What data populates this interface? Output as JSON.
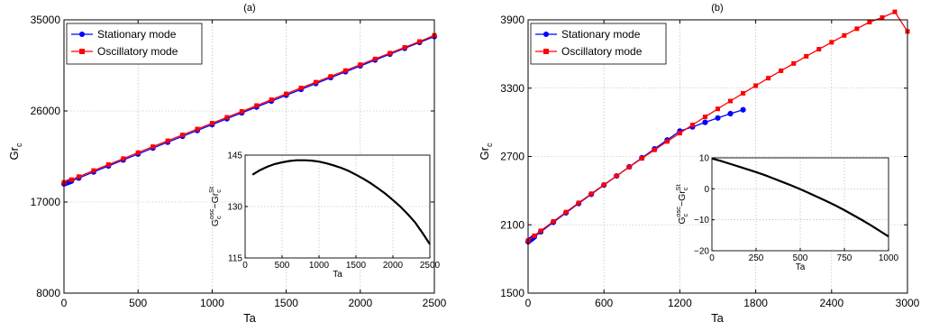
{
  "chart_data": [
    {
      "type": "line",
      "title": "(a)",
      "xlabel": "Ta",
      "ylabel_main": "Gr",
      "ylabel_sub": "c",
      "xlim": [
        0,
        2500
      ],
      "ylim": [
        8000,
        35000
      ],
      "xticks": [
        "0",
        "500",
        "1000",
        "1500",
        "2000",
        "2500"
      ],
      "yticks": [
        "8000",
        "17000",
        "26000",
        "35000"
      ],
      "legend": {
        "placement": "top-left",
        "entries": [
          "Stationary mode",
          "Oscillatory mode"
        ]
      },
      "series": [
        {
          "name": "Stationary mode",
          "color": "#0000ff",
          "marker": "circle",
          "x": [
            0,
            10,
            20,
            30,
            40,
            50,
            100,
            200,
            300,
            400,
            500,
            600,
            700,
            800,
            900,
            1000,
            1100,
            1200,
            1300,
            1400,
            1500,
            1600,
            1700,
            1800,
            1900,
            2000,
            2100,
            2200,
            2300,
            2400,
            2500
          ],
          "y": [
            18800,
            18850,
            18900,
            18960,
            19010,
            19070,
            19370,
            19970,
            20560,
            21150,
            21740,
            22330,
            22910,
            23490,
            24070,
            24650,
            25230,
            25810,
            26390,
            26970,
            27550,
            28130,
            28710,
            29290,
            29870,
            30450,
            31030,
            31610,
            32190,
            32770,
            33350
          ]
        },
        {
          "name": "Oscillatory mode",
          "color": "#ff0000",
          "marker": "square",
          "x": [
            0,
            50,
            100,
            200,
            300,
            400,
            500,
            600,
            700,
            800,
            900,
            1000,
            1100,
            1200,
            1300,
            1400,
            1500,
            1600,
            1700,
            1800,
            1900,
            2000,
            2100,
            2200,
            2300,
            2400,
            2500
          ],
          "y": [
            18939,
            19210,
            19510,
            20110,
            20700,
            21290,
            21880,
            22470,
            23050,
            23630,
            24210,
            24790,
            25370,
            25950,
            26530,
            27110,
            27690,
            28270,
            28840,
            29410,
            29990,
            30570,
            31140,
            31710,
            32280,
            32860,
            33470
          ]
        }
      ],
      "inset": {
        "ylabel": "G",
        "xlabel": "Ta",
        "xlim": [
          0,
          2500
        ],
        "ylim": [
          115,
          145
        ],
        "xticks": [
          "0",
          "500",
          "1000",
          "1500",
          "2000",
          "2500"
        ],
        "yticks": [
          "115",
          "130",
          "145"
        ],
        "x": [
          100,
          200,
          300,
          400,
          500,
          600,
          700,
          800,
          900,
          1000,
          1100,
          1200,
          1300,
          1400,
          1500,
          1600,
          1700,
          1800,
          1900,
          2000,
          2100,
          2200,
          2300,
          2400,
          2500
        ],
        "y": [
          139.3,
          140.6,
          141.6,
          142.4,
          142.9,
          143.3,
          143.5,
          143.5,
          143.4,
          143.1,
          142.6,
          142.0,
          141.3,
          140.4,
          139.3,
          138.1,
          136.8,
          135.3,
          133.7,
          131.9,
          130.0,
          127.8,
          125.4,
          122.3,
          119.0
        ]
      }
    },
    {
      "type": "line",
      "title": "(b)",
      "xlabel": "Ta",
      "ylabel_main": "Gr",
      "ylabel_sub": "c",
      "xlim": [
        0,
        3000
      ],
      "ylim": [
        1500,
        3900
      ],
      "xticks": [
        "0",
        "600",
        "1200",
        "1800",
        "2400",
        "3000"
      ],
      "yticks": [
        "1500",
        "2100",
        "2700",
        "3300",
        "3900"
      ],
      "legend": {
        "placement": "top-left",
        "entries": [
          "Stationary mode",
          "Oscillatory mode"
        ]
      },
      "series": [
        {
          "name": "Stationary mode",
          "color": "#0000ff",
          "marker": "circle",
          "x": [
            0,
            10,
            20,
            30,
            40,
            50,
            100,
            200,
            300,
            400,
            500,
            600,
            700,
            800,
            900,
            1000,
            1100,
            1200,
            1300,
            1400,
            1500,
            1600,
            1700
          ],
          "y": [
            1951,
            1960,
            1969,
            1977,
            1986,
            1995,
            2038,
            2122,
            2205,
            2287,
            2368,
            2449,
            2529,
            2609,
            2688,
            2767,
            2845,
            2923,
            2960,
            3000,
            3038,
            3076,
            3110
          ]
        },
        {
          "name": "Oscillatory mode",
          "color": "#ff0000",
          "marker": "square",
          "x": [
            0,
            50,
            100,
            200,
            300,
            400,
            500,
            600,
            700,
            800,
            900,
            1000,
            1100,
            1200,
            1300,
            1400,
            1500,
            1600,
            1700,
            1800,
            1900,
            2000,
            2100,
            2200,
            2300,
            2400,
            2500,
            2600,
            2700,
            2800,
            2900,
            3000
          ],
          "y": [
            1961,
            2004,
            2047,
            2130,
            2212,
            2293,
            2373,
            2452,
            2530,
            2607,
            2683,
            2758,
            2832,
            2905,
            2977,
            3048,
            3118,
            3187,
            3255,
            3322,
            3388,
            3453,
            3517,
            3580,
            3642,
            3703,
            3763,
            3822,
            3880,
            3920,
            3970,
            3798
          ]
        }
      ],
      "inset": {
        "ylabel": "G",
        "xlabel": "Ta",
        "xlim": [
          0,
          1000
        ],
        "ylim": [
          -20,
          10
        ],
        "xticks": [
          "0",
          "250",
          "500",
          "750",
          "1000"
        ],
        "yticks": [
          "-20",
          "-10",
          "0",
          "10"
        ],
        "x": [
          0,
          50,
          100,
          150,
          200,
          250,
          300,
          350,
          400,
          450,
          500,
          550,
          600,
          650,
          700,
          750,
          800,
          850,
          900,
          950,
          1000
        ],
        "y": [
          9.8,
          9.0,
          8.1,
          7.2,
          6.3,
          5.4,
          4.4,
          3.3,
          2.2,
          1.1,
          -0.1,
          -1.4,
          -2.7,
          -4.0,
          -5.4,
          -6.9,
          -8.5,
          -10.1,
          -11.8,
          -13.6,
          -15.4
        ]
      }
    }
  ]
}
